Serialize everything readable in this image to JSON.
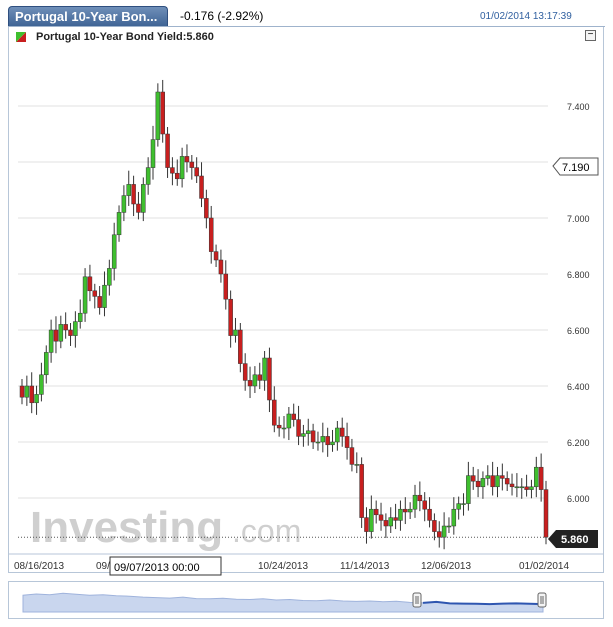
{
  "header": {
    "tab_title": "Portugal 10-Year Bon...",
    "change": "-0.176 (-2.92%)",
    "datetime": "01/02/2014 13:17:39"
  },
  "legend": {
    "label": "Portugal 10-Year Bond Yield:5.860",
    "icon": "up-down-candle-icon",
    "minimize_label": "−"
  },
  "watermark": {
    "brand": "Investing",
    "suffix": ".com"
  },
  "crosshair_label": "09/07/2013 00:00",
  "price_tags": {
    "hover": "7.190",
    "current": "5.860"
  },
  "colors": {
    "up": "#3fbf2f",
    "down": "#c81f1f",
    "tab": "#4a6fa0",
    "nav_fill": "#c9d6ee",
    "nav_selected": "#2f56b0"
  },
  "chart_data": {
    "type": "candlestick",
    "title": "Portugal 10-Year Bond Yield",
    "ylim": [
      5.8,
      7.6
    ],
    "yticks": [
      "6.000",
      "6.200",
      "6.400",
      "6.600",
      "6.800",
      "7.000",
      "7.200",
      "7.400"
    ],
    "xticks": [
      "08/16/2013",
      "09/07/2013",
      "10/24/2013",
      "11/14/2013",
      "12/06/2013",
      "01/02/2014"
    ],
    "grid": true,
    "closes": [
      6.36,
      6.4,
      6.34,
      6.37,
      6.44,
      6.52,
      6.6,
      6.56,
      6.62,
      6.6,
      6.58,
      6.63,
      6.66,
      6.79,
      6.74,
      6.72,
      6.68,
      6.76,
      6.82,
      6.94,
      7.02,
      7.08,
      7.12,
      7.05,
      7.02,
      7.12,
      7.18,
      7.28,
      7.45,
      7.3,
      7.18,
      7.16,
      7.14,
      7.22,
      7.2,
      7.18,
      7.15,
      7.07,
      7.0,
      6.88,
      6.85,
      6.8,
      6.71,
      6.58,
      6.6,
      6.48,
      6.42,
      6.4,
      6.44,
      6.42,
      6.5,
      6.35,
      6.26,
      6.25,
      6.25,
      6.3,
      6.28,
      6.22,
      6.23,
      6.24,
      6.2,
      6.2,
      6.22,
      6.19,
      6.2,
      6.25,
      6.22,
      6.18,
      6.12,
      6.12,
      5.93,
      5.88,
      5.96,
      5.94,
      5.92,
      5.9,
      5.93,
      5.92,
      5.96,
      5.95,
      5.96,
      6.01,
      5.99,
      5.96,
      5.92,
      5.88,
      5.86,
      5.9,
      5.9,
      5.96,
      5.98,
      5.98,
      6.08,
      6.06,
      6.04,
      6.07,
      6.08,
      6.04,
      6.08,
      6.07,
      6.05,
      6.04,
      6.04,
      6.04,
      6.03,
      6.04,
      6.11,
      6.03,
      5.86
    ],
    "current": 5.86,
    "hover_value": 7.19
  }
}
